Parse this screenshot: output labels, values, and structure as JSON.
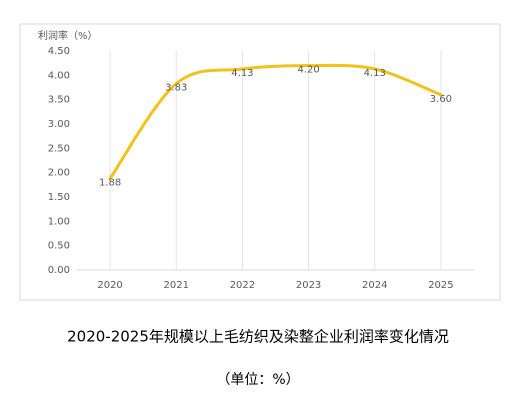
{
  "chart_data": {
    "type": "line",
    "title": "2020-2025年规模以上毛纺织及染整企业利润率变化情况",
    "subtitle": "（单位：%）",
    "y_label": "利润率（%）",
    "categories": [
      "2020",
      "2021",
      "2022",
      "2023",
      "2024",
      "2025"
    ],
    "series": [
      {
        "color": "#f2c21b",
        "values": [
          1.88,
          3.83,
          4.13,
          4.2,
          4.13,
          3.6
        ],
        "value_labels": [
          "1.88",
          "3.83",
          "4.13",
          "4.20",
          "4.13",
          "3.60"
        ]
      }
    ],
    "ylim": [
      0,
      4.5
    ],
    "yticks": [
      {
        "value": 0,
        "label": "0.00"
      },
      {
        "value": 0.5,
        "label": "0.50"
      },
      {
        "value": 1,
        "label": "1.00"
      },
      {
        "value": 1.5,
        "label": "1.50"
      },
      {
        "value": 2,
        "label": "2.00"
      },
      {
        "value": 2.5,
        "label": "2.50"
      },
      {
        "value": 3,
        "label": "3.00"
      },
      {
        "value": 3.5,
        "label": "3.50"
      },
      {
        "value": 4,
        "label": "4.00"
      },
      {
        "value": 4.5,
        "label": "4.50"
      }
    ],
    "smooth": true,
    "grid": "x"
  }
}
